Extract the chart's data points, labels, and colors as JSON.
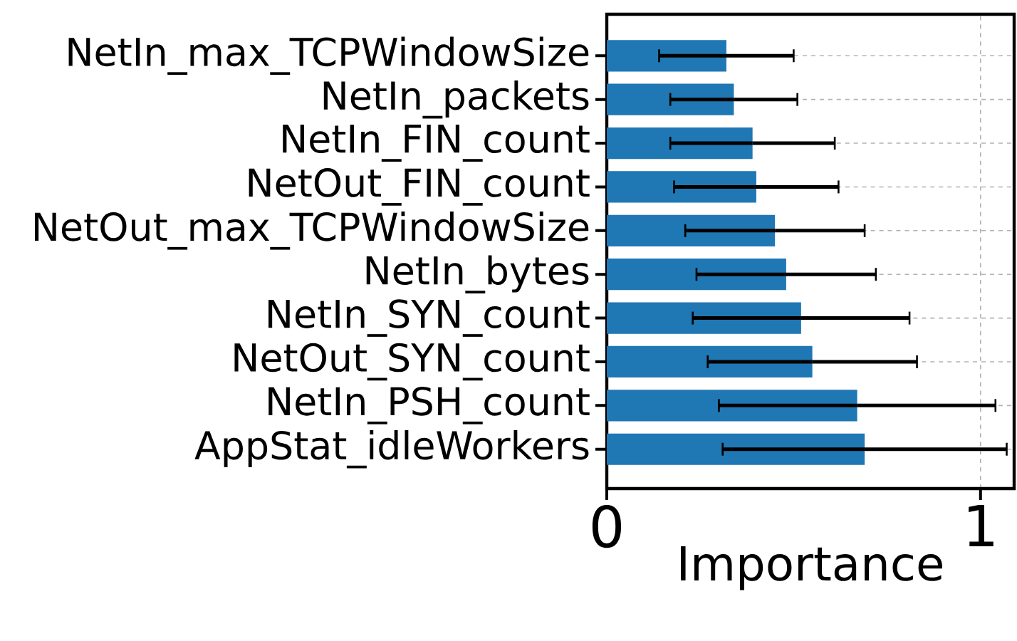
{
  "chart_data": {
    "type": "bar",
    "orientation": "horizontal",
    "xlabel": "Importance",
    "categories": [
      "NetIn_max_TCPWindowSize",
      "NetIn_packets",
      "NetIn_FIN_count",
      "NetOut_FIN_count",
      "NetOut_max_TCPWindowSize",
      "NetIn_bytes",
      "NetIn_SYN_count",
      "NetOut_SYN_count",
      "NetIn_PSH_count",
      "AppStat_idleWorkers"
    ],
    "values": [
      0.32,
      0.34,
      0.39,
      0.4,
      0.45,
      0.48,
      0.52,
      0.55,
      0.67,
      0.69
    ],
    "errors": [
      0.18,
      0.17,
      0.22,
      0.22,
      0.24,
      0.24,
      0.29,
      0.28,
      0.37,
      0.38
    ],
    "color": "#1f77b4",
    "xlim": [
      0,
      1.09
    ],
    "xticks": [
      0,
      1
    ],
    "grid": true
  }
}
